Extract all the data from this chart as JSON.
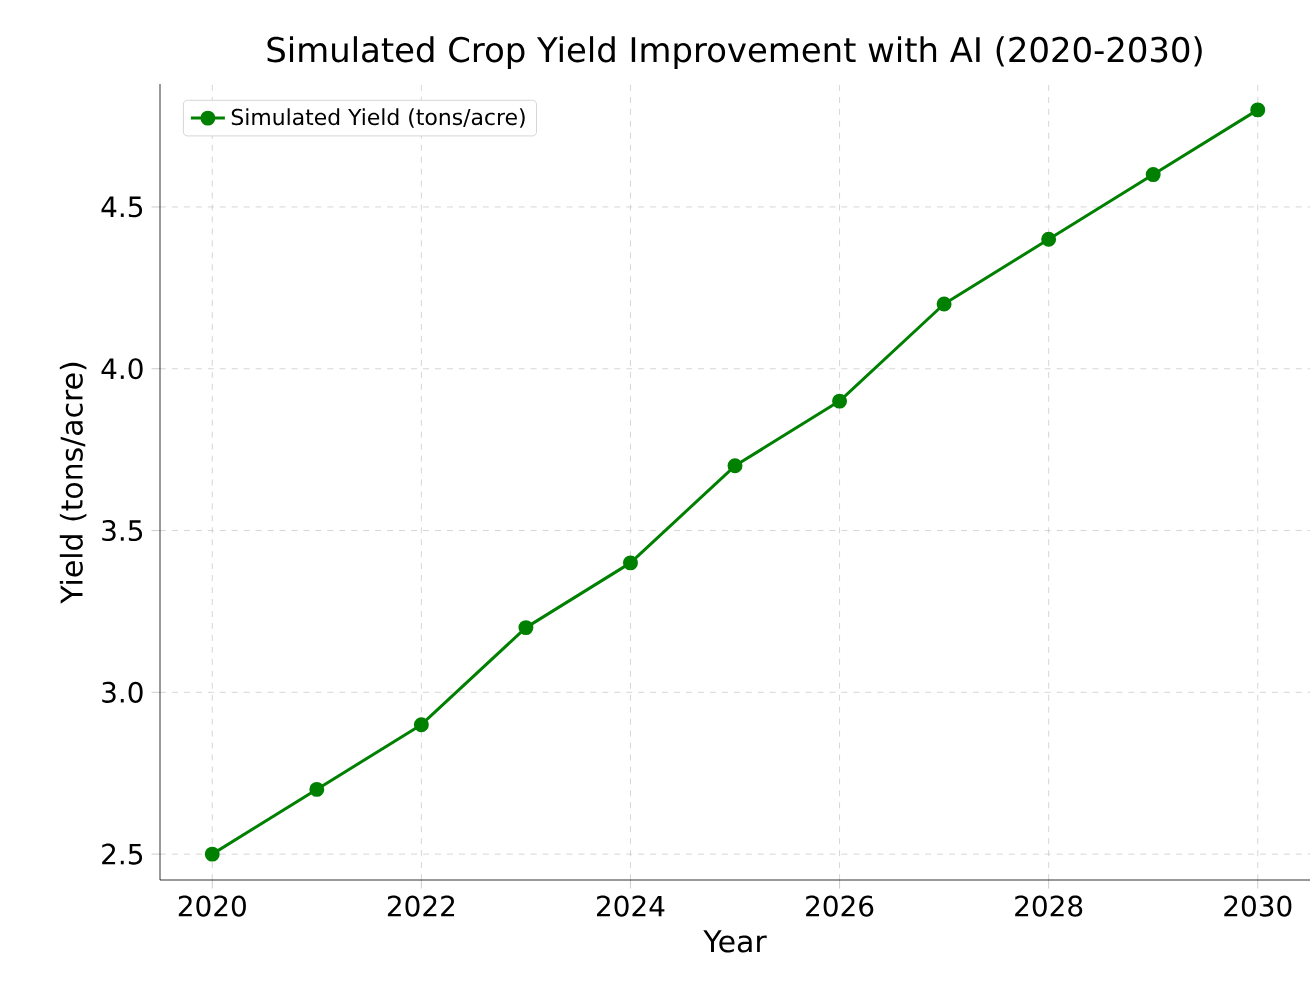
{
  "chart_data": {
    "type": "line",
    "title": "Simulated Crop Yield Improvement with AI (2020-2030)",
    "xlabel": "Year",
    "ylabel": "Yield (tons/acre)",
    "x": [
      2020,
      2021,
      2022,
      2023,
      2024,
      2025,
      2026,
      2027,
      2028,
      2029,
      2030
    ],
    "series": [
      {
        "name": "Simulated Yield (tons/acre)",
        "color": "#008000",
        "values": [
          2.5,
          2.7,
          2.9,
          3.2,
          3.4,
          3.7,
          3.9,
          4.2,
          4.4,
          4.6,
          4.8
        ]
      }
    ],
    "xlim": [
      2019.5,
      2030.5
    ],
    "ylim": [
      2.42,
      4.88
    ],
    "xticks": [
      2020,
      2022,
      2024,
      2026,
      2028,
      2030
    ],
    "yticks": [
      2.5,
      {
        "value": 3,
        "label": "3.0"
      },
      3.5,
      {
        "value": 4,
        "label": "4.0"
      },
      4.5
    ],
    "grid": true,
    "legend": "top left",
    "marker": "circle",
    "line_style": "solid"
  }
}
